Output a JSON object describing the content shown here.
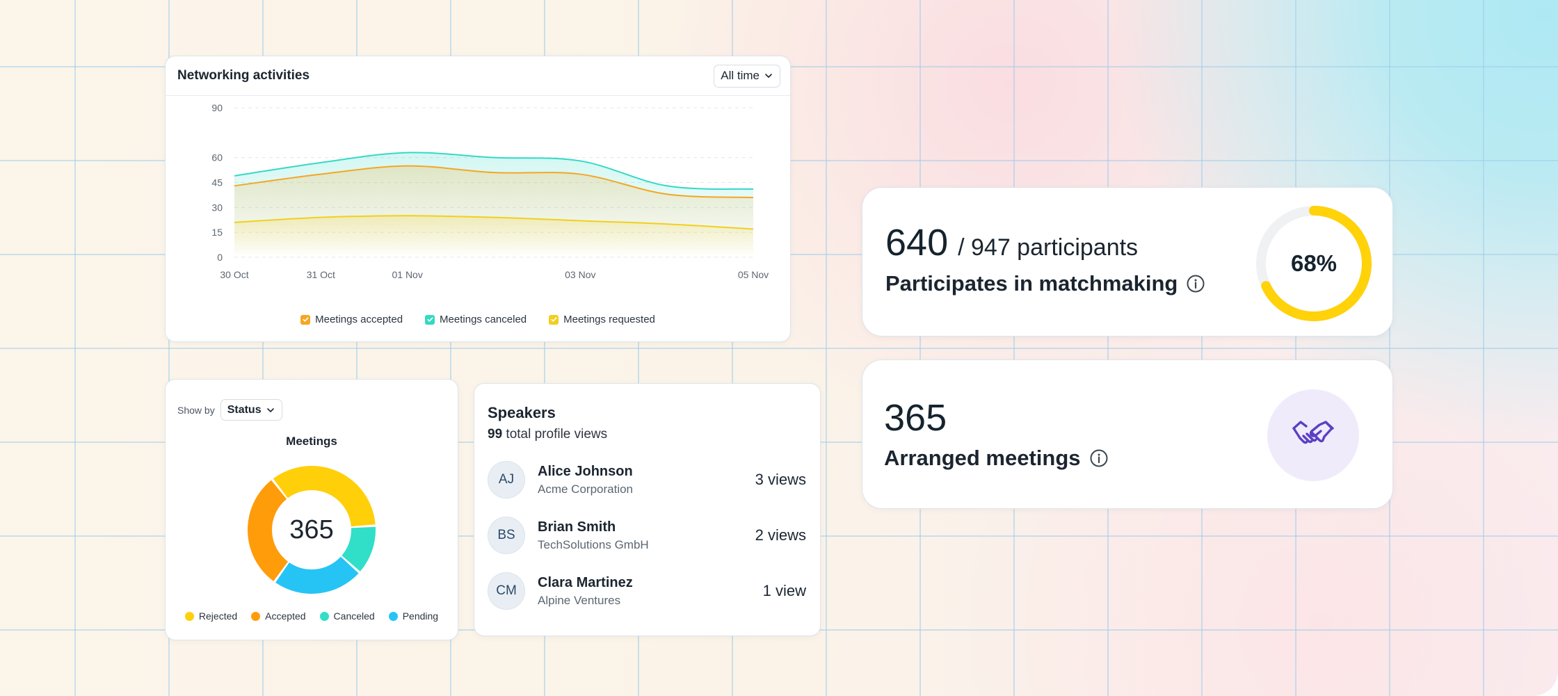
{
  "networking": {
    "title": "Networking activities",
    "period_select": "All time"
  },
  "chart_data": {
    "type": "area",
    "x_ticks": [
      "30 Oct",
      "31 Oct",
      "01 Nov",
      "03 Nov",
      "05 Nov"
    ],
    "x": [
      0,
      1,
      2,
      3,
      4,
      5,
      6
    ],
    "y_ticks": [
      0,
      15,
      30,
      45,
      60,
      90
    ],
    "ylim": [
      0,
      90
    ],
    "series": [
      {
        "name": "Meetings accepted",
        "color": "#f5a623",
        "values": [
          43,
          50,
          55,
          51,
          50,
          38,
          36
        ]
      },
      {
        "name": "Meetings canceled",
        "color": "#35d9c5",
        "values": [
          49,
          57,
          63,
          60,
          58,
          43,
          41
        ]
      },
      {
        "name": "Meetings requested",
        "color": "#f2cf1d",
        "values": [
          21,
          24,
          25,
          24,
          22,
          20,
          17
        ]
      }
    ],
    "legend_position": "bottom",
    "grid": true
  },
  "status_panel": {
    "show_by_label": "Show by",
    "show_by_value": "Status",
    "chart_title": "Meetings",
    "total": "365",
    "segments": [
      {
        "name": "Rejected",
        "color": "#ffcf0a",
        "value": 126
      },
      {
        "name": "Canceled",
        "color": "#31dfc8",
        "value": 46
      },
      {
        "name": "Pending",
        "color": "#26c4f5",
        "value": 85
      },
      {
        "name": "Accepted",
        "color": "#ff9c0a",
        "value": 108
      }
    ],
    "legend": [
      {
        "name": "Rejected",
        "color": "#ffcf0a"
      },
      {
        "name": "Accepted",
        "color": "#ff9c0a"
      },
      {
        "name": "Canceled",
        "color": "#31dfc8"
      },
      {
        "name": "Pending",
        "color": "#26c4f5"
      }
    ]
  },
  "speakers": {
    "title": "Speakers",
    "total_views": "99",
    "total_views_label": "total profile views",
    "items": [
      {
        "initials": "AJ",
        "name": "Alice Johnson",
        "company": "Acme Corporation",
        "views": "3 views"
      },
      {
        "initials": "BS",
        "name": "Brian Smith",
        "company": "TechSolutions GmbH",
        "views": "2 views"
      },
      {
        "initials": "CM",
        "name": "Clara Martinez",
        "company": "Alpine Ventures",
        "views": "1 view"
      }
    ]
  },
  "matchmaking": {
    "count": "640",
    "total": "/ 947 participants",
    "label": "Participates in matchmaking",
    "percent_label": "68%",
    "percent": 0.68,
    "accent": "#ffd20a"
  },
  "arranged": {
    "count": "365",
    "label": "Arranged meetings",
    "icon": "handshake-icon"
  }
}
